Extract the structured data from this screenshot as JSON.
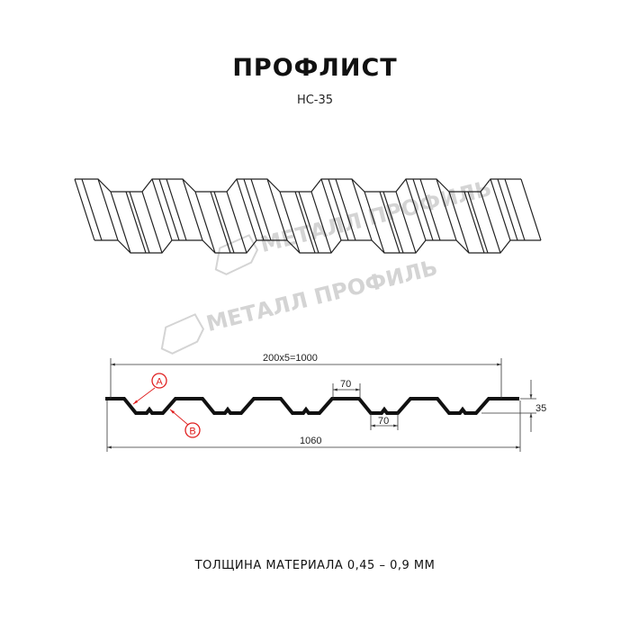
{
  "title": "ПРОФЛИСТ",
  "model": "НС-35",
  "watermark": "МЕТАЛЛ ПРОФИЛЬ",
  "dimensions": {
    "pitch": "200x5=1000",
    "crest_width": "70",
    "trough_width": "70",
    "height": "35",
    "total_width": "1060"
  },
  "callouts": {
    "a": "A",
    "b": "B"
  },
  "thickness": "ТОЛЩИНА МАТЕРИАЛА 0,45 – 0,9 ММ",
  "colors": {
    "profile": "#111111",
    "callout": "#e02020",
    "watermark": "#d4d4d4"
  }
}
